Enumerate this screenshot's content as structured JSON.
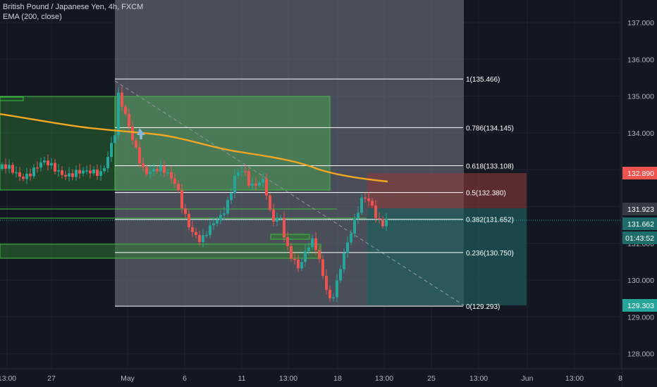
{
  "legend": {
    "symbol": "British Pound / Japanese Yen, 4h, FXCM",
    "indicator": "EMA (200, close)"
  },
  "colors": {
    "background": "#131722",
    "grid": "#1e2230",
    "up_candle": "#26a69a",
    "down_candle": "#ef5350",
    "ema": "#f5a623",
    "fib_line": "#ffffff",
    "green_zone": "#2e7d32",
    "stop_zone": "#8b3a3a",
    "target_zone": "#1e5c5a",
    "axis_text": "#b2b5be"
  },
  "price_axis": {
    "ticks": [
      "137.000",
      "136.000",
      "135.000",
      "134.000",
      "133.000",
      "132.000",
      "131.000",
      "130.000",
      "129.000",
      "128.000"
    ],
    "badges": [
      {
        "name": "stop-price-badge",
        "label": "132.890",
        "color": "#ef5350"
      },
      {
        "name": "entry-price-badge",
        "label": "131.923",
        "color": "#363a45"
      },
      {
        "name": "last-price-badge",
        "label": "131.662",
        "color": "#1e6d6a"
      },
      {
        "name": "countdown-badge",
        "label": "01:43:52",
        "color": "#1e6d6a"
      },
      {
        "name": "target-price-badge",
        "label": "129.303",
        "color": "#26a69a"
      }
    ]
  },
  "time_axis": {
    "ticks": [
      "13:00",
      "27",
      "May",
      "6",
      "11",
      "13:00",
      "18",
      "13:00",
      "25",
      "13:00",
      "Jun",
      "13:00",
      "8"
    ]
  },
  "fib_levels": [
    {
      "label": "1(135.466)",
      "price": 135.466
    },
    {
      "label": "0.786(134.145)",
      "price": 134.145
    },
    {
      "label": "0.618(133.108)",
      "price": 133.108
    },
    {
      "label": "0.5(132.380)",
      "price": 132.38
    },
    {
      "label": "0.382(131.652)",
      "price": 131.652
    },
    {
      "label": "0.236(130.750)",
      "price": 130.75
    },
    {
      "label": "0(129.293)",
      "price": 129.293
    }
  ]
}
